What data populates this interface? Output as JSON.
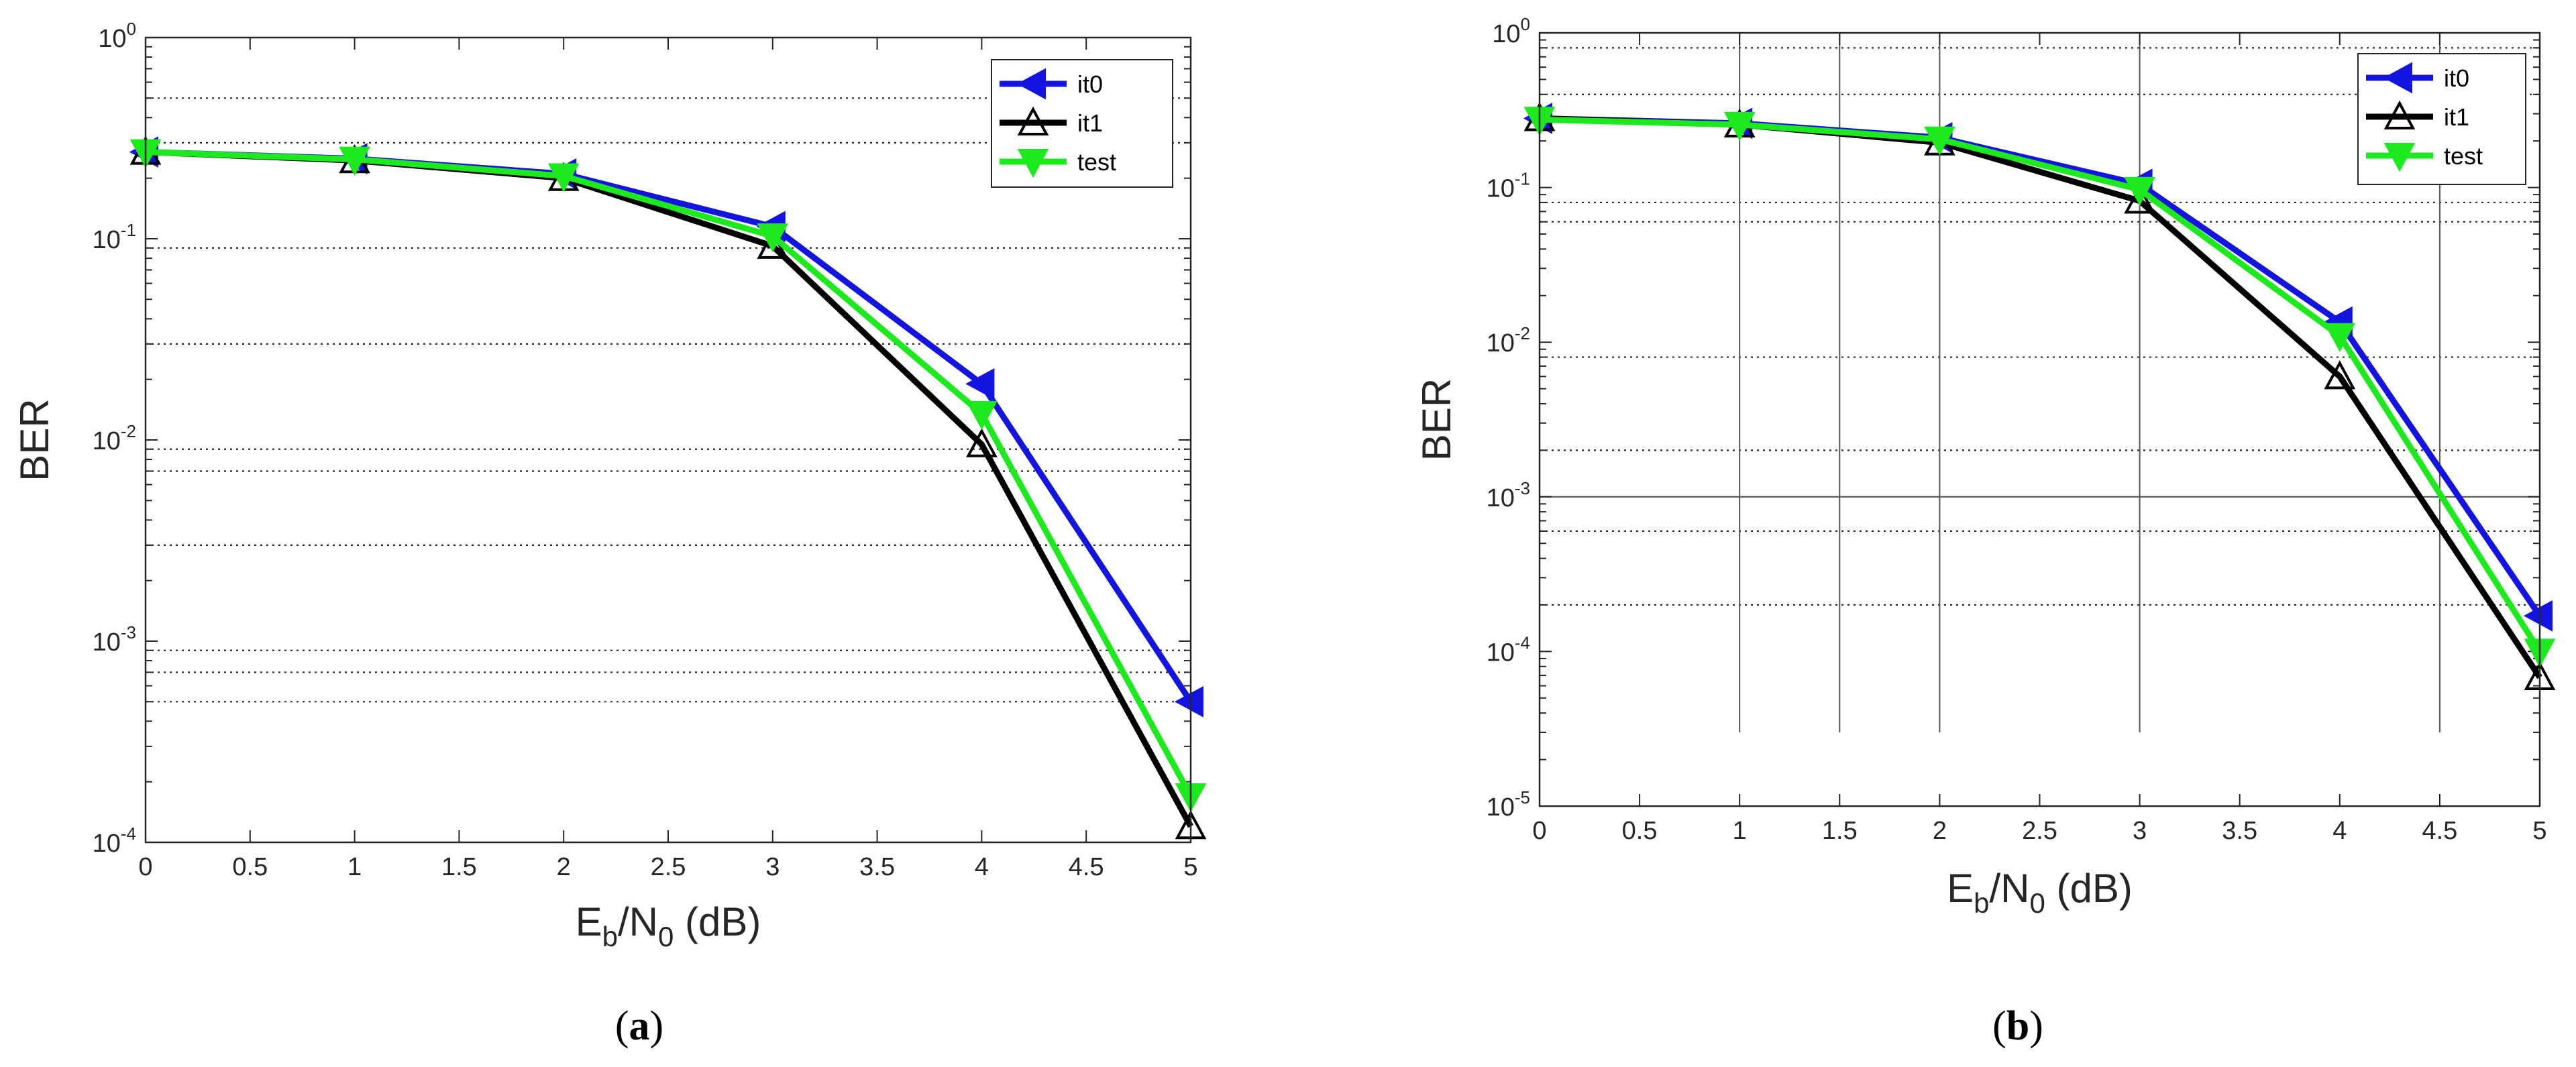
{
  "chart_data": [
    {
      "type": "line",
      "panel": "a",
      "caption_open": "(",
      "caption_letter": "a",
      "caption_close": ")",
      "xlabel_main": "E",
      "xlabel_sub1": "b",
      "xlabel_mid": "/N",
      "xlabel_sub2": "0",
      "xlabel_end": " (dB)",
      "ylabel": "BER",
      "xscale": "linear",
      "yscale": "log",
      "xlim": [
        0,
        5
      ],
      "ylim_exp": [
        -4,
        0
      ],
      "xticks": [
        "0",
        "0.5",
        "1",
        "1.5",
        "2",
        "2.5",
        "3",
        "3.5",
        "4",
        "4.5",
        "5"
      ],
      "ytick_base": "10",
      "ytick_exponents": [
        "-4",
        "-3",
        "-2",
        "-1",
        "0"
      ],
      "horizontal_grid": [
        0.5,
        0.3,
        0.09,
        0.03,
        0.009,
        0.007,
        0.003,
        0.0009,
        0.0007,
        0.0005
      ],
      "vertical_grid": [],
      "legend_position": "top-right",
      "series": [
        {
          "name": "it0",
          "color": "#1414e0",
          "marker": "triangle-left",
          "x": [
            0,
            1,
            2,
            3,
            4,
            5
          ],
          "y": [
            0.27,
            0.25,
            0.21,
            0.115,
            0.019,
            0.0005
          ]
        },
        {
          "name": "it1",
          "color": "#000000",
          "marker": "triangle-up",
          "x": [
            0,
            1,
            2,
            3,
            4,
            5
          ],
          "y": [
            0.27,
            0.245,
            0.2,
            0.092,
            0.0095,
            0.00012
          ]
        },
        {
          "name": "test",
          "color": "#1ee81e",
          "marker": "triangle-down",
          "x": [
            0,
            1,
            2,
            3,
            4,
            5
          ],
          "y": [
            0.27,
            0.248,
            0.205,
            0.103,
            0.0135,
            0.00017
          ]
        }
      ]
    },
    {
      "type": "line",
      "panel": "b",
      "caption_open": "(",
      "caption_letter": "b",
      "caption_close": ")",
      "xlabel_main": "E",
      "xlabel_sub1": "b",
      "xlabel_mid": "/N",
      "xlabel_sub2": "0",
      "xlabel_end": " (dB)",
      "ylabel": "BER",
      "xscale": "linear",
      "yscale": "log",
      "xlim": [
        0,
        5
      ],
      "ylim_exp": [
        -5,
        0
      ],
      "xticks": [
        "0",
        "0.5",
        "1",
        "1.5",
        "2",
        "2.5",
        "3",
        "3.5",
        "4",
        "4.5",
        "5"
      ],
      "ytick_base": "10",
      "ytick_exponents": [
        "-5",
        "-4",
        "-3",
        "-2",
        "-1",
        "0"
      ],
      "horizontal_grid": [
        0.8,
        0.4,
        0.08,
        0.06,
        0.008,
        0.002,
        0.0006,
        0.0002
      ],
      "horizontal_solid": [
        0.001
      ],
      "vertical_grid": [
        1,
        1.5,
        2,
        3,
        4.5
      ],
      "vertical_grid_ylim": [
        3e-05,
        1
      ],
      "legend_position": "top-right",
      "series": [
        {
          "name": "it0",
          "color": "#1414e0",
          "marker": "triangle-left",
          "x": [
            0,
            1,
            2,
            3,
            4,
            5
          ],
          "y": [
            0.28,
            0.26,
            0.21,
            0.105,
            0.0135,
            0.00017
          ]
        },
        {
          "name": "it1",
          "color": "#000000",
          "marker": "triangle-up",
          "x": [
            0,
            1,
            2,
            3,
            4,
            5
          ],
          "y": [
            0.28,
            0.255,
            0.195,
            0.082,
            0.006,
            6.8e-05
          ]
        },
        {
          "name": "test",
          "color": "#1ee81e",
          "marker": "triangle-down",
          "x": [
            0,
            1,
            2,
            3,
            4,
            5
          ],
          "y": [
            0.275,
            0.255,
            0.205,
            0.097,
            0.011,
            0.0001
          ]
        }
      ]
    }
  ]
}
